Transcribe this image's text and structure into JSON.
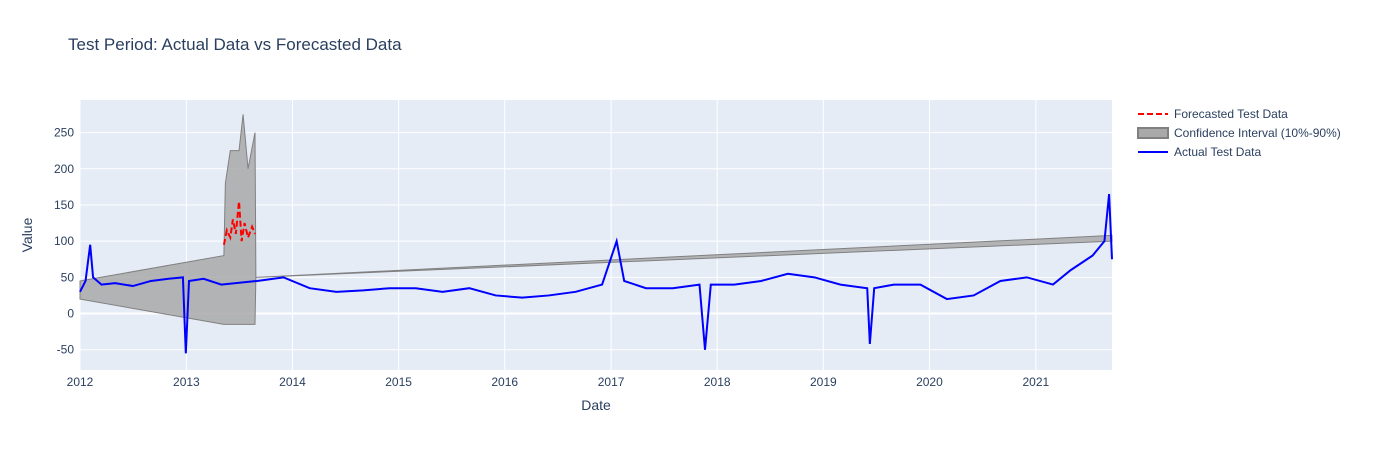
{
  "chart_data": {
    "type": "line",
    "title": "Test Period: Actual Data vs Forecasted Data",
    "xlabel": "Date",
    "ylabel": "Value",
    "xlim": [
      "2012-01-01",
      "2021-09-20"
    ],
    "ylim": [
      -78,
      295
    ],
    "x_ticks": [
      "2012",
      "2013",
      "2014",
      "2015",
      "2016",
      "2017",
      "2018",
      "2019",
      "2020",
      "2021"
    ],
    "y_ticks": [
      -50,
      0,
      50,
      100,
      150,
      200,
      250
    ],
    "grid": true,
    "legend_position": "top-right",
    "legend": [
      "Forecasted Test Data",
      "Confidence Interval (10%-90%)",
      "Actual Test Data"
    ],
    "colors": {
      "plot_bg": "#e5ecf6",
      "grid": "#ffffff",
      "actual": "#0000ff",
      "forecast": "#ff0000",
      "ci_fill": "#a9a9a9",
      "ci_line": "#808080"
    },
    "series": [
      {
        "name": "Actual Test Data",
        "style": "solid",
        "note_sampled": "approximate shape",
        "points": [
          [
            "2012-01-01",
            30
          ],
          [
            "2012-01-20",
            45
          ],
          [
            "2012-02-05",
            95
          ],
          [
            "2012-02-15",
            50
          ],
          [
            "2012-03-15",
            40
          ],
          [
            "2012-05-01",
            42
          ],
          [
            "2012-07-01",
            38
          ],
          [
            "2012-09-01",
            45
          ],
          [
            "2012-11-01",
            48
          ],
          [
            "2012-12-20",
            50
          ],
          [
            "2012-12-30",
            -55
          ],
          [
            "2013-01-10",
            45
          ],
          [
            "2013-03-01",
            48
          ],
          [
            "2013-05-01",
            40
          ],
          [
            "2013-09-01",
            45
          ],
          [
            "2013-12-01",
            50
          ],
          [
            "2014-03-01",
            35
          ],
          [
            "2014-06-01",
            30
          ],
          [
            "2014-09-01",
            32
          ],
          [
            "2014-12-01",
            35
          ],
          [
            "2015-03-01",
            35
          ],
          [
            "2015-06-01",
            30
          ],
          [
            "2015-09-01",
            35
          ],
          [
            "2015-12-01",
            25
          ],
          [
            "2016-03-01",
            22
          ],
          [
            "2016-06-01",
            25
          ],
          [
            "2016-09-01",
            30
          ],
          [
            "2016-12-01",
            40
          ],
          [
            "2017-01-20",
            100
          ],
          [
            "2017-02-15",
            45
          ],
          [
            "2017-05-01",
            35
          ],
          [
            "2017-08-01",
            35
          ],
          [
            "2017-11-01",
            40
          ],
          [
            "2017-11-20",
            -50
          ],
          [
            "2017-12-10",
            40
          ],
          [
            "2018-03-01",
            40
          ],
          [
            "2018-06-01",
            45
          ],
          [
            "2018-09-01",
            55
          ],
          [
            "2018-12-01",
            50
          ],
          [
            "2019-03-01",
            40
          ],
          [
            "2019-06-01",
            35
          ],
          [
            "2019-06-10",
            -42
          ],
          [
            "2019-06-25",
            35
          ],
          [
            "2019-09-01",
            40
          ],
          [
            "2019-12-01",
            40
          ],
          [
            "2020-03-01",
            20
          ],
          [
            "2020-06-01",
            25
          ],
          [
            "2020-09-01",
            45
          ],
          [
            "2020-12-01",
            50
          ],
          [
            "2021-03-01",
            40
          ],
          [
            "2021-05-01",
            60
          ],
          [
            "2021-07-15",
            80
          ],
          [
            "2021-08-25",
            100
          ],
          [
            "2021-09-10",
            165
          ],
          [
            "2021-09-20",
            75
          ]
        ]
      },
      {
        "name": "Forecasted Test Data",
        "style": "dash",
        "points": [
          [
            "2013-05-10",
            95
          ],
          [
            "2013-05-20",
            115
          ],
          [
            "2013-06-01",
            105
          ],
          [
            "2013-06-10",
            130
          ],
          [
            "2013-06-20",
            110
          ],
          [
            "2013-07-01",
            155
          ],
          [
            "2013-07-10",
            100
          ],
          [
            "2013-07-20",
            125
          ],
          [
            "2013-08-01",
            105
          ],
          [
            "2013-08-15",
            120
          ],
          [
            "2013-08-25",
            110
          ]
        ]
      },
      {
        "name": "Confidence Interval (10%-90%)",
        "type": "band",
        "lower": [
          [
            "2012-01-01",
            20
          ],
          [
            "2013-05-10",
            -15
          ],
          [
            "2013-08-25",
            -15
          ],
          [
            "2013-08-28",
            50
          ],
          [
            "2021-09-20",
            100
          ]
        ],
        "upper": [
          [
            "2012-01-01",
            45
          ],
          [
            "2013-05-10",
            80
          ],
          [
            "2013-05-15",
            180
          ],
          [
            "2013-06-01",
            225
          ],
          [
            "2013-07-01",
            225
          ],
          [
            "2013-07-15",
            275
          ],
          [
            "2013-08-01",
            200
          ],
          [
            "2013-08-25",
            250
          ],
          [
            "2013-08-28",
            50
          ],
          [
            "2021-09-20",
            108
          ]
        ]
      }
    ]
  }
}
